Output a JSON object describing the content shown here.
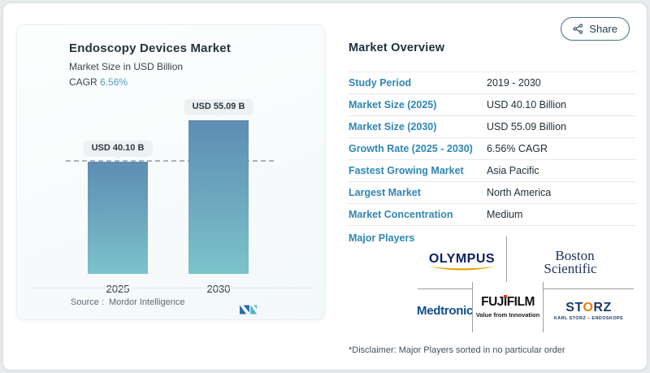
{
  "share": {
    "label": "Share"
  },
  "chart_panel": {
    "title": "Endoscopy Devices Market",
    "subtitle": "Market Size in USD Billion",
    "cagr_label": "CAGR",
    "cagr_value": "6.56%",
    "source_label": "Source :",
    "source_value": "Mordor Intelligence"
  },
  "chart_data": {
    "type": "bar",
    "title": "Endoscopy Devices Market",
    "subtitle": "Market Size in USD Billion",
    "unit": "USD Billion",
    "categories": [
      "2025",
      "2030"
    ],
    "values": [
      40.1,
      55.09
    ],
    "bar_labels": [
      "USD 40.10 B",
      "USD 55.09 B"
    ],
    "ylim": [
      0,
      60
    ],
    "reference_line": 40.1,
    "grid": false,
    "bar_gradient_top": "#5d8db3",
    "bar_gradient_bottom": "#7cc3cb"
  },
  "overview": {
    "title": "Market Overview",
    "rows": [
      {
        "label": "Study Period",
        "value": "2019 - 2030"
      },
      {
        "label": "Market Size (2025)",
        "value": "USD 40.10 Billion"
      },
      {
        "label": "Market Size (2030)",
        "value": "USD 55.09 Billion"
      },
      {
        "label": "Growth Rate (2025 - 2030)",
        "value": "6.56% CAGR"
      },
      {
        "label": "Fastest Growing Market",
        "value": "Asia Pacific"
      },
      {
        "label": "Largest Market",
        "value": "North America"
      },
      {
        "label": "Market Concentration",
        "value": "Medium"
      }
    ],
    "major_players_label": "Major Players",
    "players": {
      "olympus": "OLYMPUS",
      "boston_line1": "Boston",
      "boston_line2": "Scientific",
      "medtronic": "Medtronic",
      "fujifilm_p1": "FUJ",
      "fujifilm_i": "I",
      "fujifilm_p2": "FILM",
      "fujifilm_tagline": "Value from Innovation",
      "storz_p1": "ST",
      "storz_o": "O",
      "storz_p2": "RZ",
      "storz_sub": "KARL STORZ – ENDOSKOPE"
    },
    "disclaimer": "*Disclaimer: Major Players sorted in no particular order"
  },
  "colors": {
    "label_blue": "#2f86b5",
    "cagr_blue": "#4fa0c5",
    "bar_top": "#5d8db3",
    "bar_bottom": "#7cc3cb",
    "dashed_line": "#a8b3b8"
  }
}
